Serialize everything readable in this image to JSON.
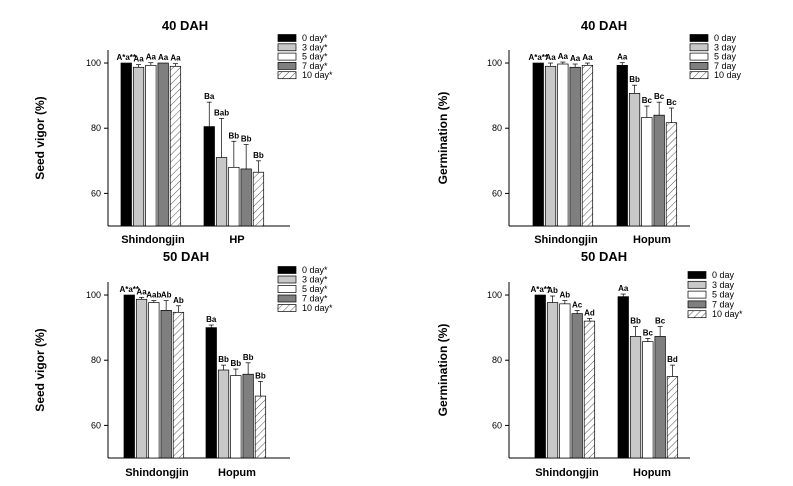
{
  "figure": {
    "palette": [
      "#000000",
      "#c8c8c8",
      "#ffffff",
      "#7f7f7f",
      "hatch"
    ]
  },
  "chart_data": [
    {
      "type": "bar",
      "title": "40 DAH",
      "ylabel": "Seed vigor (%)",
      "ylim": [
        50,
        104
      ],
      "yticks": [
        "60",
        "80",
        "100"
      ],
      "categories": [
        "Shindongjin",
        "HP"
      ],
      "legend_position": "top-right",
      "series": [
        {
          "name": "0 day*",
          "values": [
            100,
            80.5
          ],
          "errors": [
            0,
            7.5
          ],
          "labels": [
            "A*a**",
            "Ba"
          ]
        },
        {
          "name": "3 day*",
          "values": [
            98.7,
            71
          ],
          "errors": [
            0.8,
            12
          ],
          "labels": [
            "Aa",
            "Bab"
          ]
        },
        {
          "name": "5 day*",
          "values": [
            99.3,
            68
          ],
          "errors": [
            0.8,
            8
          ],
          "labels": [
            "Aa",
            "Bb"
          ]
        },
        {
          "name": "7 day*",
          "values": [
            100,
            67.5
          ],
          "errors": [
            0,
            7.5
          ],
          "labels": [
            "Aa",
            "Bb"
          ]
        },
        {
          "name": "10 day*",
          "values": [
            99,
            66.5
          ],
          "errors": [
            0.8,
            3.5
          ],
          "labels": [
            "Aa",
            "Bb"
          ]
        }
      ]
    },
    {
      "type": "bar",
      "title": "40 DAH",
      "ylabel": "Germination (%)",
      "ylim": [
        50,
        104
      ],
      "yticks": [
        "60",
        "80",
        "100"
      ],
      "categories": [
        "Shindongjin",
        "Hopum"
      ],
      "legend_position": "top-right",
      "series": [
        {
          "name": "0 day",
          "values": [
            100,
            99.3
          ],
          "errors": [
            0,
            0.8
          ],
          "labels": [
            "A*a**",
            "Aa"
          ]
        },
        {
          "name": "3 day",
          "values": [
            99,
            90.7
          ],
          "errors": [
            1,
            2.5
          ],
          "labels": [
            "Aa",
            "Bb"
          ]
        },
        {
          "name": "5 day",
          "values": [
            99.7,
            83.3
          ],
          "errors": [
            0.6,
            3.5
          ],
          "labels": [
            "Aa",
            "Bc"
          ]
        },
        {
          "name": "7 day",
          "values": [
            98.7,
            84
          ],
          "errors": [
            1,
            4
          ],
          "labels": [
            "Aa",
            "Bc"
          ]
        },
        {
          "name": "10 day",
          "values": [
            99.3,
            81.7
          ],
          "errors": [
            0.7,
            4.5
          ],
          "labels": [
            "Aa",
            "Bc"
          ]
        }
      ]
    },
    {
      "type": "bar",
      "title": "50 DAH",
      "ylabel": "Seed vigor (%)",
      "ylim": [
        50,
        104
      ],
      "yticks": [
        "60",
        "80",
        "100"
      ],
      "categories": [
        "Shindongjin",
        "Hopum"
      ],
      "legend_position": "top-right",
      "series": [
        {
          "name": "0 day*",
          "values": [
            100,
            90
          ],
          "errors": [
            0,
            0.8
          ],
          "labels": [
            "A*a**",
            "Ba"
          ]
        },
        {
          "name": "3 day*",
          "values": [
            98.7,
            77
          ],
          "errors": [
            0.6,
            1.5
          ],
          "labels": [
            "Aa",
            "Bb"
          ]
        },
        {
          "name": "5 day*",
          "values": [
            97.7,
            75.3
          ],
          "errors": [
            0.6,
            2
          ],
          "labels": [
            "Aab",
            "Bb"
          ]
        },
        {
          "name": "7 day*",
          "values": [
            95.3,
            75.7
          ],
          "errors": [
            3,
            3.5
          ],
          "labels": [
            "Ab",
            "Bb"
          ]
        },
        {
          "name": "10 day*",
          "values": [
            94.7,
            69
          ],
          "errors": [
            2,
            4.5
          ],
          "labels": [
            "Ab",
            "Bb"
          ]
        }
      ]
    },
    {
      "type": "bar",
      "title": "50 DAH",
      "ylabel": "Germination (%)",
      "ylim": [
        50,
        104
      ],
      "yticks": [
        "60",
        "80",
        "100"
      ],
      "categories": [
        "Shindongjin",
        "Hopum"
      ],
      "legend_position": "top-right",
      "series": [
        {
          "name": "0 day",
          "values": [
            100,
            99.5
          ],
          "errors": [
            0,
            0.8
          ],
          "labels": [
            "A*a**",
            "Aa"
          ]
        },
        {
          "name": "3 day",
          "values": [
            97.7,
            87.3
          ],
          "errors": [
            2,
            3
          ],
          "labels": [
            "Ab",
            "Bb"
          ]
        },
        {
          "name": "5 day",
          "values": [
            97.3,
            85.7
          ],
          "errors": [
            1,
            1
          ],
          "labels": [
            "Ab",
            "Bc"
          ]
        },
        {
          "name": "7 day",
          "values": [
            94.3,
            87.3
          ],
          "errors": [
            1,
            3
          ],
          "labels": [
            "Ac",
            "Bc"
          ]
        },
        {
          "name": "10 day*",
          "values": [
            92,
            75
          ],
          "errors": [
            0.8,
            3.5
          ],
          "labels": [
            "Ad",
            "Bd"
          ]
        }
      ]
    }
  ]
}
